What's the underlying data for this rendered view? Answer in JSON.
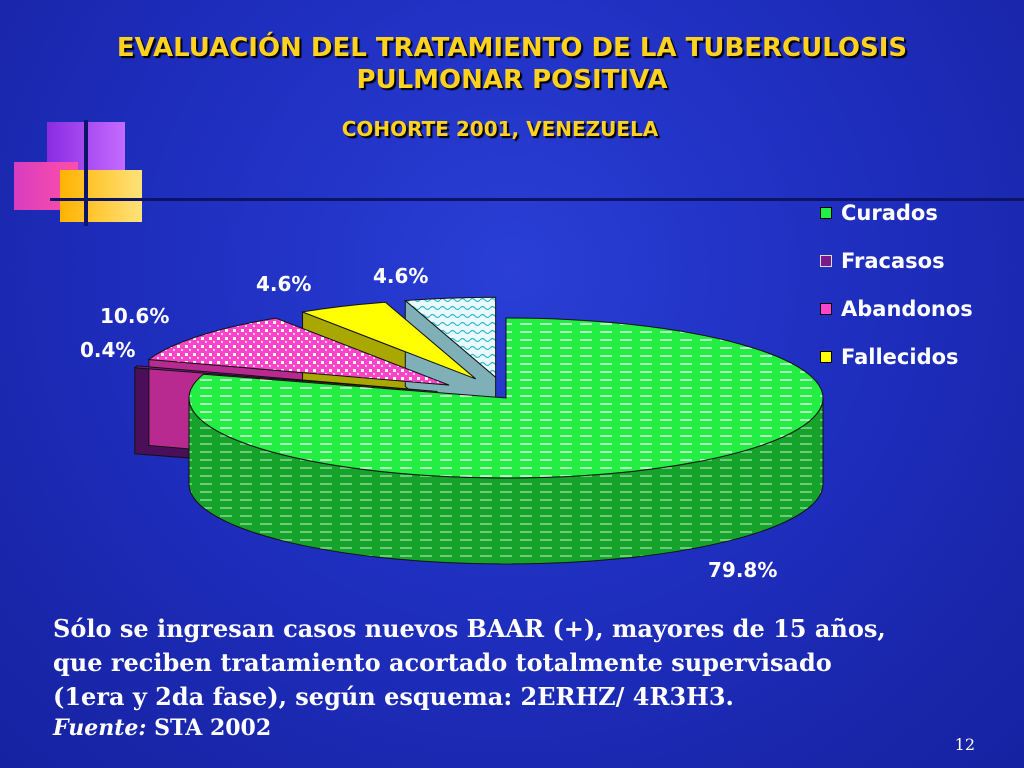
{
  "slide": {
    "title_line1": "EVALUACIÓN DEL TRATAMIENTO DE LA TUBERCULOSIS",
    "title_line2": "PULMONAR POSITIVA",
    "subtitle": "COHORTE  2001, VENEZUELA",
    "note_line1": "Sólo se ingresan casos nuevos BAAR (+), mayores de 15 años,",
    "note_line2": "que reciben tratamiento acortado totalmente supervisado",
    "note_line3": "(1era y 2da fase), según esquema: 2ERHZ/ 4R3H3.",
    "source_label": "Fuente:",
    "source_value": " STA 2002",
    "page_number": "12"
  },
  "colors": {
    "background": "#1f2fc0",
    "title": "#ffd21e",
    "curados": "#22ee44",
    "fracasos": "#7a1b8c",
    "abandonos": "#ff44cc",
    "fallecidos": "#ffff00",
    "otros": "#bfeff0"
  },
  "chart_data": {
    "type": "pie",
    "style": "3d-exploded",
    "labels": [
      "Curados",
      "Fracasos",
      "Abandonos",
      "Fallecidos",
      ""
    ],
    "values": [
      79.8,
      0.4,
      10.6,
      4.6,
      4.6
    ],
    "data_labels": [
      "79.8%",
      "0.4%",
      "10.6%",
      "4.6%",
      "4.6%"
    ],
    "legend": {
      "position": "right",
      "entries": [
        "Curados",
        "Fracasos",
        "Abandonos",
        "Fallecidos"
      ]
    }
  }
}
